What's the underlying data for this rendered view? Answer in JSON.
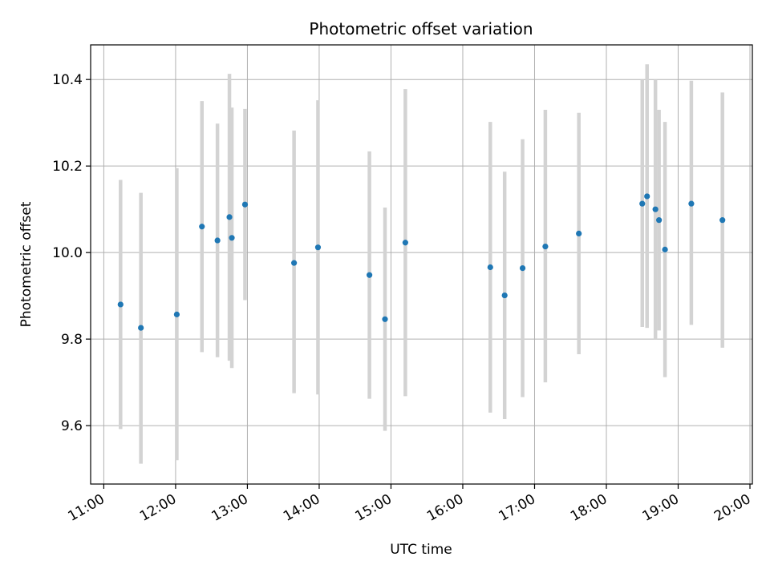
{
  "chart_data": {
    "type": "scatter",
    "title": "Photometric offset variation",
    "xlabel": "UTC time",
    "ylabel": "Photometric offset",
    "x_tick_labels": [
      "11:00",
      "12:00",
      "13:00",
      "14:00",
      "15:00",
      "16:00",
      "17:00",
      "18:00",
      "19:00",
      "20:00"
    ],
    "y_tick_labels": [
      "9.6",
      "9.8",
      "10.0",
      "10.2",
      "10.4"
    ],
    "y_ticks": [
      9.6,
      9.8,
      10.0,
      10.2,
      10.4
    ],
    "xlim": [
      "10:49",
      "20:02"
    ],
    "ylim": [
      9.465,
      10.48
    ],
    "grid": true,
    "marker_color": "#1f77b4",
    "errorbar_color": "#d3d3d3",
    "points": [
      {
        "time": "11:14",
        "y": 9.88,
        "low": 9.592,
        "high": 10.168
      },
      {
        "time": "11:31",
        "y": 9.826,
        "low": 9.512,
        "high": 10.138
      },
      {
        "time": "12:01",
        "y": 9.857,
        "low": 9.52,
        "high": 10.195
      },
      {
        "time": "12:22",
        "y": 10.06,
        "low": 9.77,
        "high": 10.35
      },
      {
        "time": "12:35",
        "y": 10.028,
        "low": 9.758,
        "high": 10.298
      },
      {
        "time": "12:45",
        "y": 10.082,
        "low": 9.75,
        "high": 10.413
      },
      {
        "time": "12:47",
        "y": 10.034,
        "low": 9.733,
        "high": 10.335
      },
      {
        "time": "12:58",
        "y": 10.111,
        "low": 9.89,
        "high": 10.332
      },
      {
        "time": "13:39",
        "y": 9.976,
        "low": 9.675,
        "high": 10.282
      },
      {
        "time": "13:59",
        "y": 10.012,
        "low": 9.672,
        "high": 10.352
      },
      {
        "time": "14:42",
        "y": 9.948,
        "low": 9.662,
        "high": 10.234
      },
      {
        "time": "14:55",
        "y": 9.846,
        "low": 9.588,
        "high": 10.104
      },
      {
        "time": "15:12",
        "y": 10.023,
        "low": 9.668,
        "high": 10.378
      },
      {
        "time": "16:23",
        "y": 9.966,
        "low": 9.63,
        "high": 10.302
      },
      {
        "time": "16:35",
        "y": 9.901,
        "low": 9.615,
        "high": 10.187
      },
      {
        "time": "16:50",
        "y": 9.964,
        "low": 9.666,
        "high": 10.262
      },
      {
        "time": "17:09",
        "y": 10.014,
        "low": 9.7,
        "high": 10.33
      },
      {
        "time": "17:37",
        "y": 10.044,
        "low": 9.765,
        "high": 10.323
      },
      {
        "time": "18:30",
        "y": 10.113,
        "low": 9.828,
        "high": 10.4
      },
      {
        "time": "18:34",
        "y": 10.13,
        "low": 9.826,
        "high": 10.435
      },
      {
        "time": "18:41",
        "y": 10.1,
        "low": 9.8,
        "high": 10.4
      },
      {
        "time": "18:44",
        "y": 10.075,
        "low": 9.82,
        "high": 10.33
      },
      {
        "time": "18:49",
        "y": 10.007,
        "low": 9.712,
        "high": 10.302
      },
      {
        "time": "19:11",
        "y": 10.113,
        "low": 9.833,
        "high": 10.397
      },
      {
        "time": "19:37",
        "y": 10.075,
        "low": 9.78,
        "high": 10.37
      }
    ]
  }
}
